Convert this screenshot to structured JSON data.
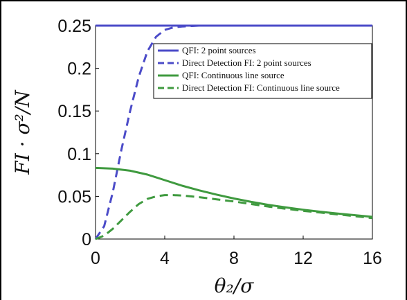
{
  "chart_data": {
    "type": "line",
    "xlabel": "θ₂/σ",
    "ylabel": "FI · σ²/N",
    "xlim": [
      0,
      16
    ],
    "ylim": [
      0,
      0.25
    ],
    "xticks": [
      "0",
      "4",
      "8",
      "12",
      "16"
    ],
    "yticks": [
      "0",
      "0.05",
      "0.1",
      "0.15",
      "0.2",
      "0.25"
    ],
    "legend_position": "top-right",
    "grid": false,
    "series": [
      {
        "name": "QFI: 2 point sources",
        "color": "#4b4bc8",
        "style": "solid",
        "x": [
          0,
          2,
          4,
          6,
          8,
          10,
          12,
          14,
          16
        ],
        "y": [
          0.25,
          0.25,
          0.25,
          0.25,
          0.25,
          0.25,
          0.25,
          0.25,
          0.25
        ]
      },
      {
        "name": "Direct Detection FI: 2 point sources",
        "color": "#4b4bc8",
        "style": "dashed",
        "x": [
          0,
          0.5,
          1,
          1.5,
          2,
          2.5,
          3,
          3.5,
          4,
          4.5,
          5,
          6,
          8,
          10,
          12,
          14,
          16
        ],
        "y": [
          0,
          0.015,
          0.055,
          0.105,
          0.15,
          0.19,
          0.22,
          0.237,
          0.245,
          0.248,
          0.249,
          0.25,
          0.25,
          0.25,
          0.25,
          0.25,
          0.25
        ]
      },
      {
        "name": "QFI: Continuous line source",
        "color": "#3f9a3f",
        "style": "solid",
        "x": [
          0,
          1,
          2,
          3,
          4,
          5,
          6,
          7,
          8,
          9,
          10,
          11,
          12,
          13,
          14,
          15,
          16
        ],
        "y": [
          0.0833,
          0.0825,
          0.08,
          0.0755,
          0.069,
          0.0625,
          0.057,
          0.052,
          0.0475,
          0.0435,
          0.04,
          0.037,
          0.0343,
          0.032,
          0.0298,
          0.0279,
          0.026
        ]
      },
      {
        "name": "Direct Detection FI: Continuous line source",
        "color": "#3f9a3f",
        "style": "dashed",
        "x": [
          0,
          0.5,
          1,
          1.5,
          2,
          2.5,
          3,
          3.5,
          4,
          4.5,
          5,
          6,
          7,
          8,
          9,
          10,
          11,
          12,
          13,
          14,
          15,
          16
        ],
        "y": [
          0,
          0.004,
          0.012,
          0.022,
          0.032,
          0.041,
          0.047,
          0.05,
          0.0515,
          0.0515,
          0.051,
          0.049,
          0.0465,
          0.044,
          0.041,
          0.038,
          0.0355,
          0.033,
          0.031,
          0.0288,
          0.0268,
          0.0245
        ]
      }
    ]
  }
}
